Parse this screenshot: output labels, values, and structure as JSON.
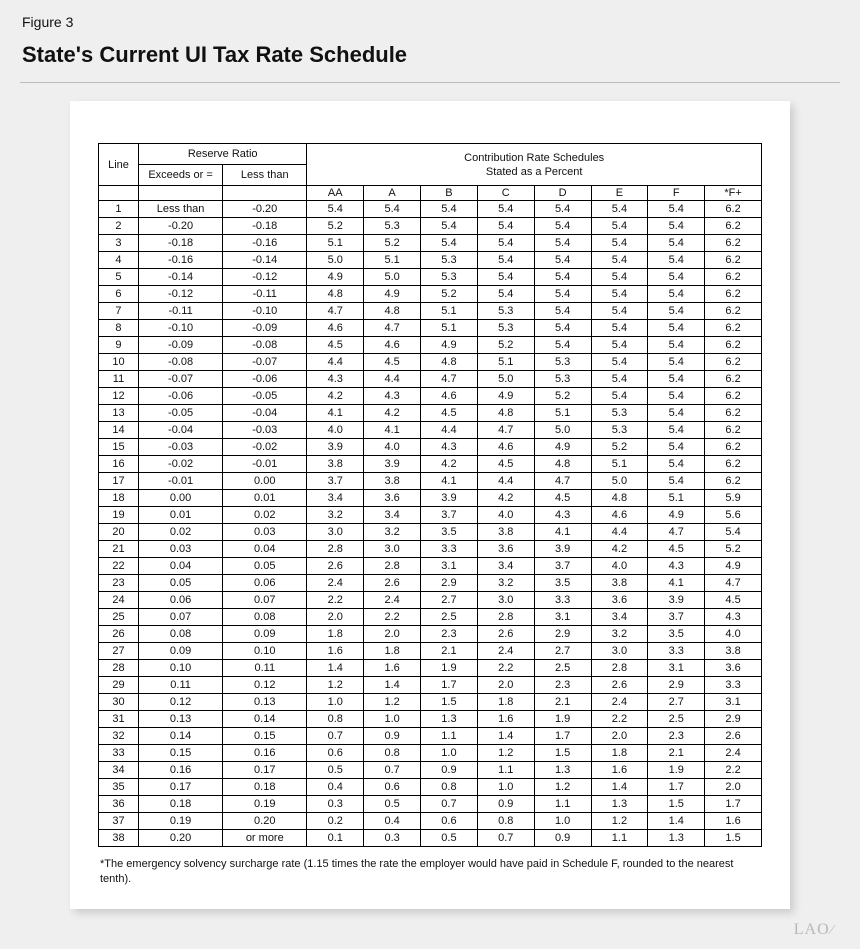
{
  "figure_label": "Figure 3",
  "figure_title": "State's Current UI Tax Rate Schedule",
  "header": {
    "reserve_ratio": "Reserve Ratio",
    "contribution": "Contribution Rate Schedules",
    "contribution_sub": "Stated as a Percent",
    "line": "Line",
    "exceeds": "Exceeds or =",
    "less_than": "Less than"
  },
  "rate_columns": [
    "AA",
    "A",
    "B",
    "C",
    "D",
    "E",
    "F",
    "*F+"
  ],
  "rows": [
    {
      "line": "1",
      "ex": "Less than",
      "lt": "-0.20",
      "r": [
        "5.4",
        "5.4",
        "5.4",
        "5.4",
        "5.4",
        "5.4",
        "5.4",
        "6.2"
      ]
    },
    {
      "line": "2",
      "ex": "-0.20",
      "lt": "-0.18",
      "r": [
        "5.2",
        "5.3",
        "5.4",
        "5.4",
        "5.4",
        "5.4",
        "5.4",
        "6.2"
      ]
    },
    {
      "line": "3",
      "ex": "-0.18",
      "lt": "-0.16",
      "r": [
        "5.1",
        "5.2",
        "5.4",
        "5.4",
        "5.4",
        "5.4",
        "5.4",
        "6.2"
      ]
    },
    {
      "line": "4",
      "ex": "-0.16",
      "lt": "-0.14",
      "r": [
        "5.0",
        "5.1",
        "5.3",
        "5.4",
        "5.4",
        "5.4",
        "5.4",
        "6.2"
      ]
    },
    {
      "line": "5",
      "ex": "-0.14",
      "lt": "-0.12",
      "r": [
        "4.9",
        "5.0",
        "5.3",
        "5.4",
        "5.4",
        "5.4",
        "5.4",
        "6.2"
      ]
    },
    {
      "line": "6",
      "ex": "-0.12",
      "lt": "-0.11",
      "r": [
        "4.8",
        "4.9",
        "5.2",
        "5.4",
        "5.4",
        "5.4",
        "5.4",
        "6.2"
      ]
    },
    {
      "line": "7",
      "ex": "-0.11",
      "lt": "-0.10",
      "r": [
        "4.7",
        "4.8",
        "5.1",
        "5.3",
        "5.4",
        "5.4",
        "5.4",
        "6.2"
      ]
    },
    {
      "line": "8",
      "ex": "-0.10",
      "lt": "-0.09",
      "r": [
        "4.6",
        "4.7",
        "5.1",
        "5.3",
        "5.4",
        "5.4",
        "5.4",
        "6.2"
      ]
    },
    {
      "line": "9",
      "ex": "-0.09",
      "lt": "-0.08",
      "r": [
        "4.5",
        "4.6",
        "4.9",
        "5.2",
        "5.4",
        "5.4",
        "5.4",
        "6.2"
      ]
    },
    {
      "line": "10",
      "ex": "-0.08",
      "lt": "-0.07",
      "r": [
        "4.4",
        "4.5",
        "4.8",
        "5.1",
        "5.3",
        "5.4",
        "5.4",
        "6.2"
      ]
    },
    {
      "line": "11",
      "ex": "-0.07",
      "lt": "-0.06",
      "r": [
        "4.3",
        "4.4",
        "4.7",
        "5.0",
        "5.3",
        "5.4",
        "5.4",
        "6.2"
      ]
    },
    {
      "line": "12",
      "ex": "-0.06",
      "lt": "-0.05",
      "r": [
        "4.2",
        "4.3",
        "4.6",
        "4.9",
        "5.2",
        "5.4",
        "5.4",
        "6.2"
      ]
    },
    {
      "line": "13",
      "ex": "-0.05",
      "lt": "-0.04",
      "r": [
        "4.1",
        "4.2",
        "4.5",
        "4.8",
        "5.1",
        "5.3",
        "5.4",
        "6.2"
      ]
    },
    {
      "line": "14",
      "ex": "-0.04",
      "lt": "-0.03",
      "r": [
        "4.0",
        "4.1",
        "4.4",
        "4.7",
        "5.0",
        "5.3",
        "5.4",
        "6.2"
      ]
    },
    {
      "line": "15",
      "ex": "-0.03",
      "lt": "-0.02",
      "r": [
        "3.9",
        "4.0",
        "4.3",
        "4.6",
        "4.9",
        "5.2",
        "5.4",
        "6.2"
      ]
    },
    {
      "line": "16",
      "ex": "-0.02",
      "lt": "-0.01",
      "r": [
        "3.8",
        "3.9",
        "4.2",
        "4.5",
        "4.8",
        "5.1",
        "5.4",
        "6.2"
      ]
    },
    {
      "line": "17",
      "ex": "-0.01",
      "lt": "0.00",
      "r": [
        "3.7",
        "3.8",
        "4.1",
        "4.4",
        "4.7",
        "5.0",
        "5.4",
        "6.2"
      ]
    },
    {
      "line": "18",
      "ex": "0.00",
      "lt": "0.01",
      "r": [
        "3.4",
        "3.6",
        "3.9",
        "4.2",
        "4.5",
        "4.8",
        "5.1",
        "5.9"
      ]
    },
    {
      "line": "19",
      "ex": "0.01",
      "lt": "0.02",
      "r": [
        "3.2",
        "3.4",
        "3.7",
        "4.0",
        "4.3",
        "4.6",
        "4.9",
        "5.6"
      ]
    },
    {
      "line": "20",
      "ex": "0.02",
      "lt": "0.03",
      "r": [
        "3.0",
        "3.2",
        "3.5",
        "3.8",
        "4.1",
        "4.4",
        "4.7",
        "5.4"
      ]
    },
    {
      "line": "21",
      "ex": "0.03",
      "lt": "0.04",
      "r": [
        "2.8",
        "3.0",
        "3.3",
        "3.6",
        "3.9",
        "4.2",
        "4.5",
        "5.2"
      ]
    },
    {
      "line": "22",
      "ex": "0.04",
      "lt": "0.05",
      "r": [
        "2.6",
        "2.8",
        "3.1",
        "3.4",
        "3.7",
        "4.0",
        "4.3",
        "4.9"
      ]
    },
    {
      "line": "23",
      "ex": "0.05",
      "lt": "0.06",
      "r": [
        "2.4",
        "2.6",
        "2.9",
        "3.2",
        "3.5",
        "3.8",
        "4.1",
        "4.7"
      ]
    },
    {
      "line": "24",
      "ex": "0.06",
      "lt": "0.07",
      "r": [
        "2.2",
        "2.4",
        "2.7",
        "3.0",
        "3.3",
        "3.6",
        "3.9",
        "4.5"
      ]
    },
    {
      "line": "25",
      "ex": "0.07",
      "lt": "0.08",
      "r": [
        "2.0",
        "2.2",
        "2.5",
        "2.8",
        "3.1",
        "3.4",
        "3.7",
        "4.3"
      ]
    },
    {
      "line": "26",
      "ex": "0.08",
      "lt": "0.09",
      "r": [
        "1.8",
        "2.0",
        "2.3",
        "2.6",
        "2.9",
        "3.2",
        "3.5",
        "4.0"
      ]
    },
    {
      "line": "27",
      "ex": "0.09",
      "lt": "0.10",
      "r": [
        "1.6",
        "1.8",
        "2.1",
        "2.4",
        "2.7",
        "3.0",
        "3.3",
        "3.8"
      ]
    },
    {
      "line": "28",
      "ex": "0.10",
      "lt": "0.11",
      "r": [
        "1.4",
        "1.6",
        "1.9",
        "2.2",
        "2.5",
        "2.8",
        "3.1",
        "3.6"
      ]
    },
    {
      "line": "29",
      "ex": "0.11",
      "lt": "0.12",
      "r": [
        "1.2",
        "1.4",
        "1.7",
        "2.0",
        "2.3",
        "2.6",
        "2.9",
        "3.3"
      ]
    },
    {
      "line": "30",
      "ex": "0.12",
      "lt": "0.13",
      "r": [
        "1.0",
        "1.2",
        "1.5",
        "1.8",
        "2.1",
        "2.4",
        "2.7",
        "3.1"
      ]
    },
    {
      "line": "31",
      "ex": "0.13",
      "lt": "0.14",
      "r": [
        "0.8",
        "1.0",
        "1.3",
        "1.6",
        "1.9",
        "2.2",
        "2.5",
        "2.9"
      ]
    },
    {
      "line": "32",
      "ex": "0.14",
      "lt": "0.15",
      "r": [
        "0.7",
        "0.9",
        "1.1",
        "1.4",
        "1.7",
        "2.0",
        "2.3",
        "2.6"
      ]
    },
    {
      "line": "33",
      "ex": "0.15",
      "lt": "0.16",
      "r": [
        "0.6",
        "0.8",
        "1.0",
        "1.2",
        "1.5",
        "1.8",
        "2.1",
        "2.4"
      ]
    },
    {
      "line": "34",
      "ex": "0.16",
      "lt": "0.17",
      "r": [
        "0.5",
        "0.7",
        "0.9",
        "1.1",
        "1.3",
        "1.6",
        "1.9",
        "2.2"
      ]
    },
    {
      "line": "35",
      "ex": "0.17",
      "lt": "0.18",
      "r": [
        "0.4",
        "0.6",
        "0.8",
        "1.0",
        "1.2",
        "1.4",
        "1.7",
        "2.0"
      ]
    },
    {
      "line": "36",
      "ex": "0.18",
      "lt": "0.19",
      "r": [
        "0.3",
        "0.5",
        "0.7",
        "0.9",
        "1.1",
        "1.3",
        "1.5",
        "1.7"
      ]
    },
    {
      "line": "37",
      "ex": "0.19",
      "lt": "0.20",
      "r": [
        "0.2",
        "0.4",
        "0.6",
        "0.8",
        "1.0",
        "1.2",
        "1.4",
        "1.6"
      ]
    },
    {
      "line": "38",
      "ex": "0.20",
      "lt": "or more",
      "r": [
        "0.1",
        "0.3",
        "0.5",
        "0.7",
        "0.9",
        "1.1",
        "1.3",
        "1.5"
      ]
    }
  ],
  "footnote": "*The emergency solvency surcharge rate (1.15 times the rate the employer would have paid in Schedule F, rounded to the nearest tenth).",
  "watermark": "LAO"
}
